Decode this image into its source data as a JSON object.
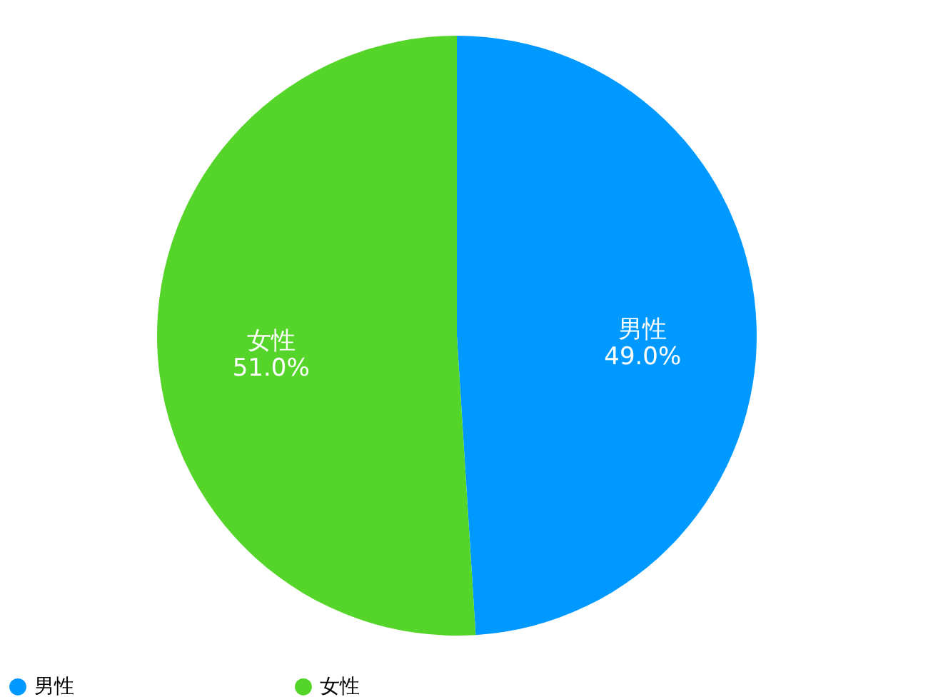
{
  "chart_data": {
    "type": "pie",
    "categories": [
      "男性",
      "女性"
    ],
    "values": [
      49.0,
      51.0
    ],
    "colors": [
      "#0099ff",
      "#55d52a"
    ],
    "value_labels": [
      "49.0%",
      "51.0%"
    ],
    "legend": "bottom"
  }
}
